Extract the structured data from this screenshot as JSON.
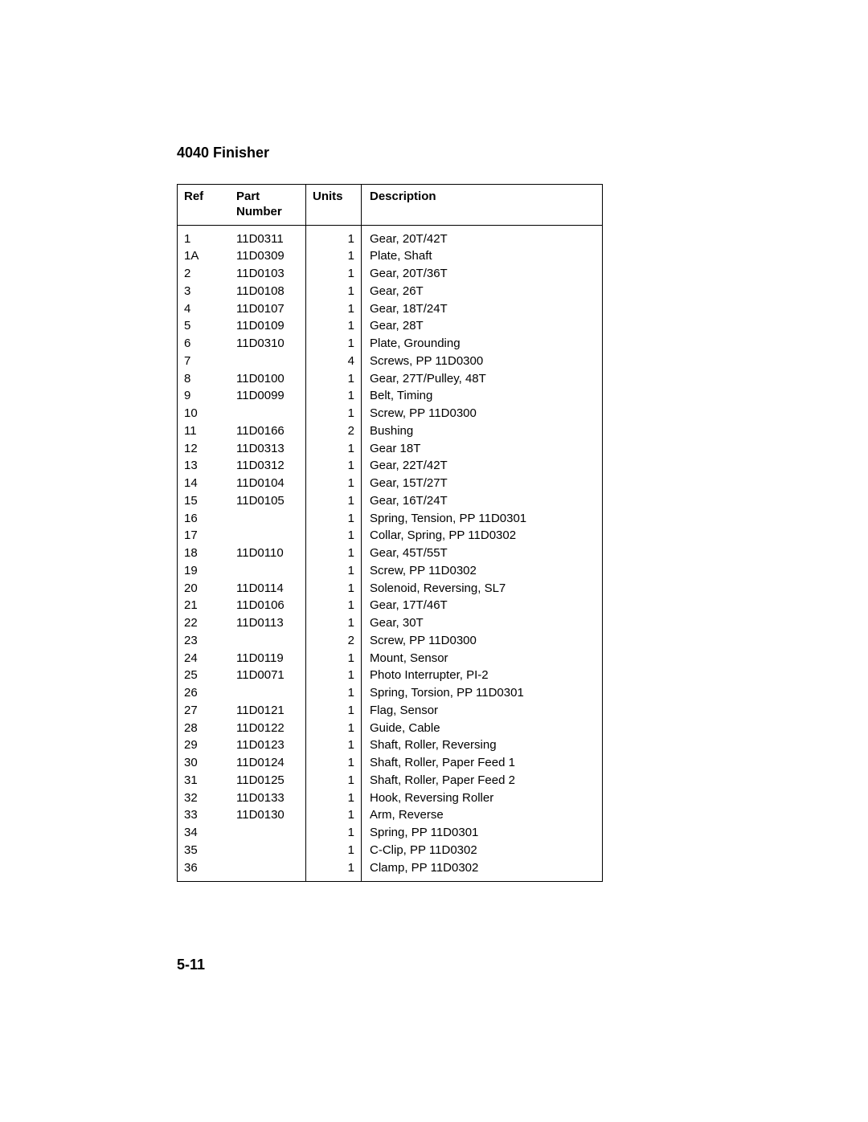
{
  "title": "4040 Finisher",
  "page_number": "5-11",
  "table": {
    "headers": {
      "ref": "Ref",
      "part_l1": "Part",
      "part_l2": "Number",
      "units": "Units",
      "description": "Description"
    },
    "rows": [
      {
        "ref": "1",
        "part": "11D0311",
        "units": "1",
        "desc": "Gear, 20T/42T"
      },
      {
        "ref": "1A",
        "part": "11D0309",
        "units": "1",
        "desc": "Plate, Shaft"
      },
      {
        "ref": "2",
        "part": "11D0103",
        "units": "1",
        "desc": "Gear, 20T/36T"
      },
      {
        "ref": "3",
        "part": "11D0108",
        "units": "1",
        "desc": "Gear, 26T"
      },
      {
        "ref": "4",
        "part": "11D0107",
        "units": "1",
        "desc": "Gear, 18T/24T"
      },
      {
        "ref": "5",
        "part": "11D0109",
        "units": "1",
        "desc": "Gear, 28T"
      },
      {
        "ref": "6",
        "part": "11D0310",
        "units": "1",
        "desc": "Plate, Grounding"
      },
      {
        "ref": "7",
        "part": "",
        "units": "4",
        "desc": "Screws, PP 11D0300"
      },
      {
        "ref": "8",
        "part": "11D0100",
        "units": "1",
        "desc": "Gear, 27T/Pulley, 48T"
      },
      {
        "ref": "9",
        "part": "11D0099",
        "units": "1",
        "desc": "Belt, Timing"
      },
      {
        "ref": "10",
        "part": "",
        "units": "1",
        "desc": "Screw, PP 11D0300"
      },
      {
        "ref": "11",
        "part": "11D0166",
        "units": "2",
        "desc": "Bushing"
      },
      {
        "ref": "12",
        "part": "11D0313",
        "units": "1",
        "desc": "Gear 18T"
      },
      {
        "ref": "13",
        "part": "11D0312",
        "units": "1",
        "desc": "Gear, 22T/42T"
      },
      {
        "ref": "14",
        "part": "11D0104",
        "units": "1",
        "desc": "Gear, 15T/27T"
      },
      {
        "ref": "15",
        "part": "11D0105",
        "units": "1",
        "desc": "Gear, 16T/24T"
      },
      {
        "ref": "16",
        "part": "",
        "units": "1",
        "desc": "Spring, Tension, PP 11D0301"
      },
      {
        "ref": "17",
        "part": "",
        "units": "1",
        "desc": "Collar, Spring, PP 11D0302"
      },
      {
        "ref": "18",
        "part": "11D0110",
        "units": "1",
        "desc": "Gear, 45T/55T"
      },
      {
        "ref": "19",
        "part": "",
        "units": "1",
        "desc": "Screw, PP 11D0302"
      },
      {
        "ref": "20",
        "part": "11D0114",
        "units": "1",
        "desc": "Solenoid, Reversing, SL7"
      },
      {
        "ref": "21",
        "part": "11D0106",
        "units": "1",
        "desc": "Gear, 17T/46T"
      },
      {
        "ref": "22",
        "part": "11D0113",
        "units": "1",
        "desc": "Gear, 30T"
      },
      {
        "ref": "23",
        "part": "",
        "units": "2",
        "desc": "Screw, PP 11D0300"
      },
      {
        "ref": "24",
        "part": "11D0119",
        "units": "1",
        "desc": "Mount, Sensor"
      },
      {
        "ref": "25",
        "part": "11D0071",
        "units": "1",
        "desc": "Photo Interrupter, PI-2"
      },
      {
        "ref": "26",
        "part": "",
        "units": "1",
        "desc": "Spring, Torsion, PP 11D0301"
      },
      {
        "ref": "27",
        "part": "11D0121",
        "units": "1",
        "desc": "Flag, Sensor"
      },
      {
        "ref": "28",
        "part": "11D0122",
        "units": "1",
        "desc": "Guide, Cable"
      },
      {
        "ref": "29",
        "part": "11D0123",
        "units": "1",
        "desc": "Shaft, Roller, Reversing"
      },
      {
        "ref": "30",
        "part": "11D0124",
        "units": "1",
        "desc": "Shaft, Roller, Paper Feed 1"
      },
      {
        "ref": "31",
        "part": "11D0125",
        "units": "1",
        "desc": "Shaft, Roller, Paper Feed 2"
      },
      {
        "ref": "32",
        "part": "11D0133",
        "units": "1",
        "desc": "Hook, Reversing Roller"
      },
      {
        "ref": "33",
        "part": "11D0130",
        "units": "1",
        "desc": "Arm, Reverse"
      },
      {
        "ref": "34",
        "part": "",
        "units": "1",
        "desc": "Spring, PP 11D0301"
      },
      {
        "ref": "35",
        "part": "",
        "units": "1",
        "desc": "C-Clip, PP 11D0302"
      },
      {
        "ref": "36",
        "part": "",
        "units": "1",
        "desc": "Clamp, PP 11D0302"
      }
    ]
  }
}
